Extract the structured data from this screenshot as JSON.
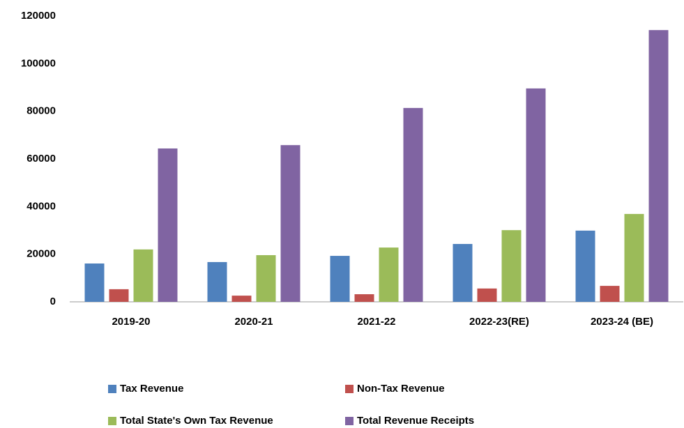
{
  "chart_data": {
    "type": "bar",
    "categories": [
      "2019-20",
      "2020-21",
      "2021-22",
      "2022-23(RE)",
      "2023-24 (BE)"
    ],
    "series": [
      {
        "name": "Tax Revenue",
        "color": "#4f81bd",
        "values": [
          16100,
          16700,
          19300,
          24300,
          29900
        ]
      },
      {
        "name": "Non-Tax Revenue",
        "color": "#c0504d",
        "values": [
          5300,
          2600,
          3200,
          5600,
          6700
        ]
      },
      {
        "name": "Total State's Own Tax Revenue",
        "color": "#9bbb59",
        "values": [
          22000,
          19600,
          22800,
          30100,
          36900
        ]
      },
      {
        "name": "Total Revenue Receipts",
        "color": "#8064a2",
        "values": [
          64400,
          65800,
          81400,
          89600,
          114100
        ]
      }
    ],
    "ylim": [
      0,
      120000
    ],
    "yticks": [
      0,
      20000,
      40000,
      60000,
      80000,
      100000,
      120000
    ],
    "grid": false
  }
}
